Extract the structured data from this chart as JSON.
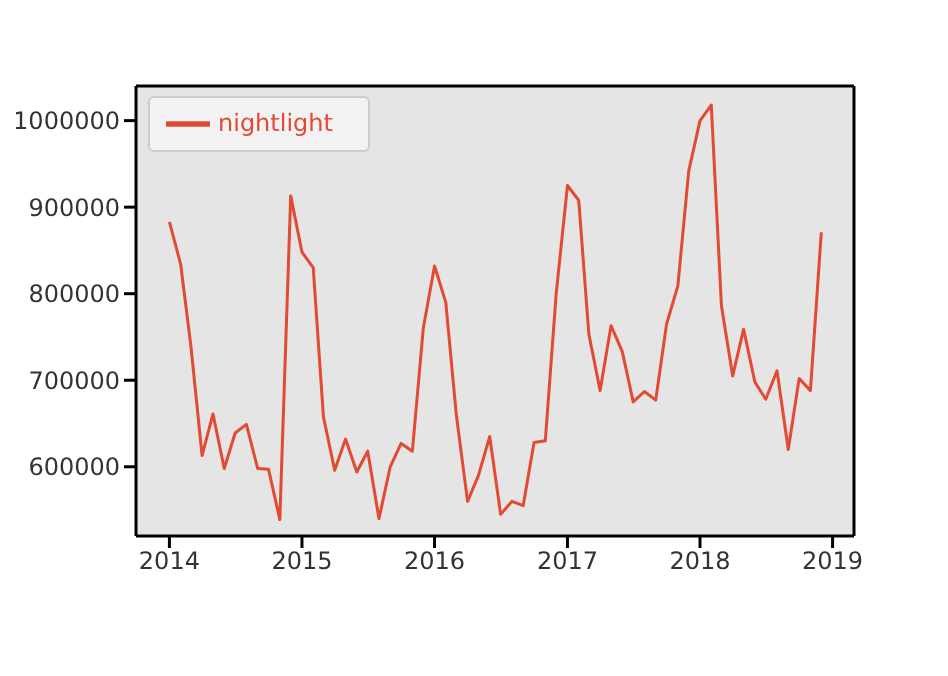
{
  "chart_data": {
    "type": "line",
    "x": [
      "2014-01",
      "2014-02",
      "2014-03",
      "2014-04",
      "2014-05",
      "2014-06",
      "2014-07",
      "2014-08",
      "2014-09",
      "2014-10",
      "2014-11",
      "2014-12",
      "2015-01",
      "2015-02",
      "2015-03",
      "2015-04",
      "2015-05",
      "2015-06",
      "2015-07",
      "2015-08",
      "2015-09",
      "2015-10",
      "2015-11",
      "2015-12",
      "2016-01",
      "2016-02",
      "2016-03",
      "2016-04",
      "2016-05",
      "2016-06",
      "2016-07",
      "2016-08",
      "2016-09",
      "2016-10",
      "2016-11",
      "2016-12",
      "2017-01",
      "2017-02",
      "2017-03",
      "2017-04",
      "2017-05",
      "2017-06",
      "2017-07",
      "2017-08",
      "2017-09",
      "2017-10",
      "2017-11",
      "2017-12",
      "2018-01",
      "2018-02",
      "2018-03",
      "2018-04",
      "2018-05",
      "2018-06",
      "2018-07",
      "2018-08",
      "2018-09",
      "2018-10",
      "2018-11",
      "2018-12"
    ],
    "series": [
      {
        "name": "nightlight",
        "color": "#e24a33",
        "values": [
          883000,
          834000,
          740000,
          613000,
          661000,
          598000,
          639000,
          649000,
          598000,
          597000,
          539000,
          913000,
          848000,
          830000,
          658000,
          596000,
          632000,
          594000,
          618000,
          540000,
          600000,
          627000,
          618000,
          760000,
          832000,
          790000,
          660000,
          560000,
          590000,
          635000,
          545000,
          560000,
          555000,
          628000,
          630000,
          800000,
          925000,
          908000,
          753000,
          688000,
          763000,
          733000,
          675000,
          687000,
          677000,
          765000,
          809000,
          942000,
          1000000,
          1018000,
          786000,
          705000,
          759000,
          698000,
          678000,
          711000,
          620000,
          702000,
          688000,
          871000
        ]
      }
    ],
    "xlim": [
      "2013-10",
      "2019-03"
    ],
    "xticks": [
      "2014",
      "2015",
      "2016",
      "2017",
      "2018",
      "2019"
    ],
    "ylim": [
      520000,
      1040000
    ],
    "yticks": [
      600000,
      700000,
      800000,
      900000,
      1000000
    ],
    "grid": false,
    "legend": "top left",
    "marker": "none",
    "line_style": "solid"
  }
}
